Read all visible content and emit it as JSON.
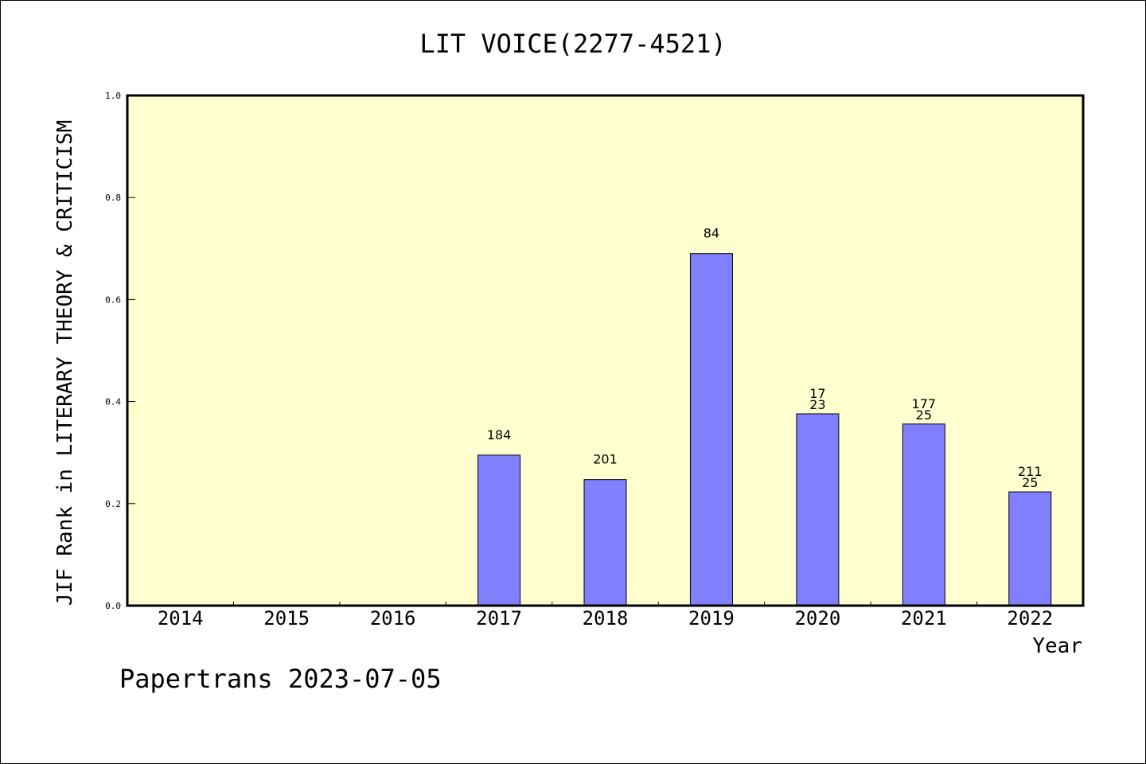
{
  "chart_data": {
    "type": "bar",
    "title": "LIT VOICE(2277-4521)",
    "ylabel": "JIF Rank in LITERARY THEORY & CRITICISM",
    "xlabel": "Year",
    "ylim": [
      0,
      1.0
    ],
    "yticks": [
      "0.0",
      "0.2",
      "0.4",
      "0.6",
      "0.8",
      "1.0"
    ],
    "grid": false,
    "categories": [
      "2014",
      "2015",
      "2016",
      "2017",
      "2018",
      "2019",
      "2020",
      "2021",
      "2022"
    ],
    "values": [
      null,
      null,
      null,
      0.295,
      0.247,
      0.69,
      0.376,
      0.356,
      0.223
    ],
    "labels": [
      [],
      [],
      [],
      [
        "184"
      ],
      [
        "201"
      ],
      [
        "84"
      ],
      [
        "17",
        "23"
      ],
      [
        "177",
        "25"
      ],
      [
        "211",
        "25"
      ]
    ],
    "colors": {
      "bar": "#8080ff",
      "plot_bg": "#ffffd0",
      "axis": "#000000"
    }
  },
  "footer": "Papertrans 2023-07-05"
}
